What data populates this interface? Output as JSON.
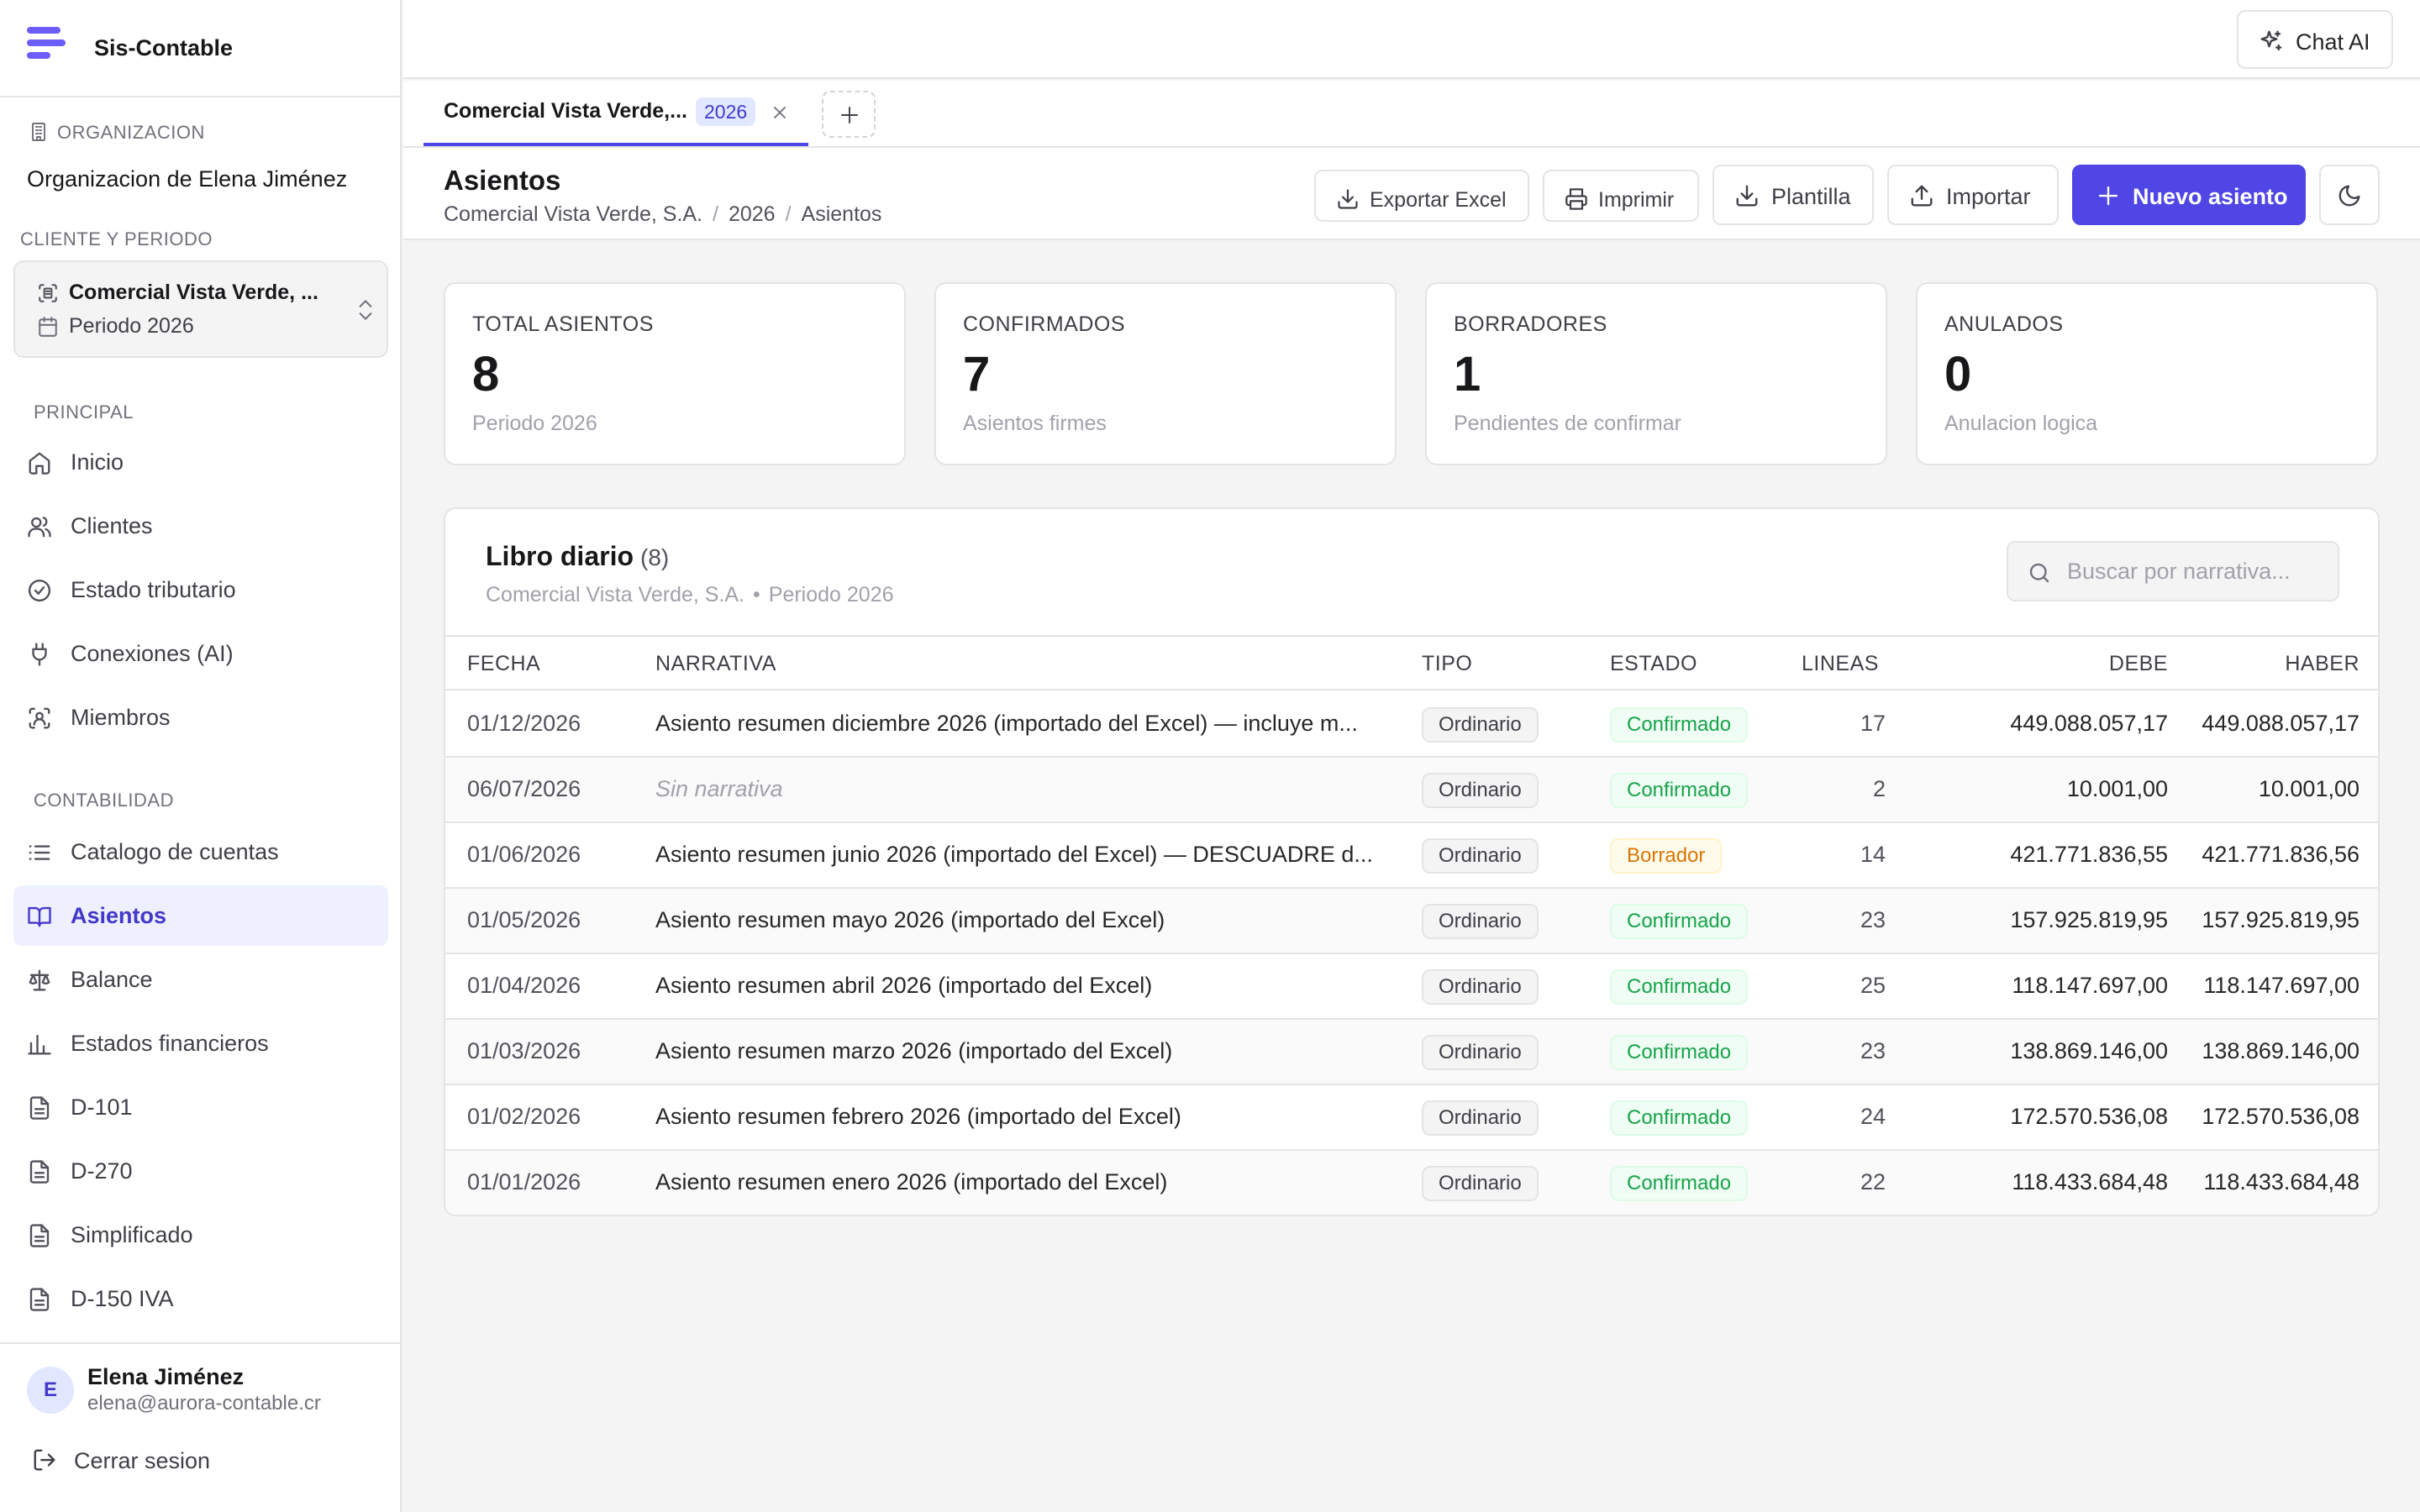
{
  "app": {
    "name": "Sis-Contable"
  },
  "sidebar": {
    "org_label": "ORGANIZACION",
    "org_name": "Organizacion de Elena Jiménez",
    "client_period_label": "CLIENTE Y PERIODO",
    "client_name": "Comercial Vista Verde, ...",
    "period": "Periodo 2026",
    "sections": [
      {
        "label": "PRINCIPAL",
        "items": [
          {
            "label": "Inicio",
            "icon": "home-icon"
          },
          {
            "label": "Clientes",
            "icon": "users-icon"
          },
          {
            "label": "Estado tributario",
            "icon": "badge-check-icon"
          },
          {
            "label": "Conexiones (AI)",
            "icon": "plug-icon"
          },
          {
            "label": "Miembros",
            "icon": "scan-user-icon"
          }
        ]
      },
      {
        "label": "CONTABILIDAD",
        "items": [
          {
            "label": "Catalogo de cuentas",
            "icon": "list-icon"
          },
          {
            "label": "Asientos",
            "icon": "book-icon",
            "active": true
          },
          {
            "label": "Balance",
            "icon": "scale-icon"
          },
          {
            "label": "Estados financieros",
            "icon": "bar-chart-icon"
          },
          {
            "label": "D-101",
            "icon": "file-icon"
          },
          {
            "label": "D-270",
            "icon": "file-icon"
          },
          {
            "label": "Simplificado",
            "icon": "file-icon"
          },
          {
            "label": "D-150 IVA",
            "icon": "file-icon"
          }
        ]
      }
    ],
    "user": {
      "initial": "E",
      "name": "Elena Jiménez",
      "email": "elena@aurora-contable.cr"
    },
    "logout_label": "Cerrar sesion"
  },
  "topbar": {
    "chat_label": "Chat AI"
  },
  "tabs": [
    {
      "label": "Comercial Vista Verde,...",
      "badge": "2026"
    }
  ],
  "page": {
    "title": "Asientos",
    "breadcrumbs": [
      "Comercial Vista Verde, S.A.",
      "2026",
      "Asientos"
    ],
    "actions": {
      "export_excel": "Exportar Excel",
      "print": "Imprimir",
      "template": "Plantilla",
      "import": "Importar",
      "new_entry": "Nuevo asiento"
    }
  },
  "stats": [
    {
      "label": "TOTAL ASIENTOS",
      "value": "8",
      "sub": "Periodo 2026"
    },
    {
      "label": "CONFIRMADOS",
      "value": "7",
      "sub": "Asientos firmes"
    },
    {
      "label": "BORRADORES",
      "value": "1",
      "sub": "Pendientes de confirmar"
    },
    {
      "label": "ANULADOS",
      "value": "0",
      "sub": "Anulacion logica"
    }
  ],
  "journal": {
    "title": "Libro diario",
    "count": "(8)",
    "subtitle_client": "Comercial Vista Verde, S.A.",
    "subtitle_sep": "•",
    "subtitle_period": "Periodo 2026",
    "search_placeholder": "Buscar por narrativa...",
    "columns": {
      "fecha": "FECHA",
      "narrativa": "NARRATIVA",
      "tipo": "TIPO",
      "estado": "ESTADO",
      "lineas": "LINEAS",
      "debe": "DEBE",
      "haber": "HABER"
    },
    "rows": [
      {
        "fecha": "01/12/2026",
        "narrativa": "Asiento resumen diciembre 2026 (importado del Excel) — incluye m...",
        "tipo": "Ordinario",
        "estado": "Confirmado",
        "status": "ok",
        "lineas": "17",
        "debe": "449.088.057,17",
        "haber": "449.088.057,17"
      },
      {
        "fecha": "06/07/2026",
        "narrativa": "Sin narrativa",
        "empty": true,
        "tipo": "Ordinario",
        "estado": "Confirmado",
        "status": "ok",
        "lineas": "2",
        "debe": "10.001,00",
        "haber": "10.001,00"
      },
      {
        "fecha": "01/06/2026",
        "narrativa": "Asiento resumen junio 2026 (importado del Excel) — DESCUADRE d...",
        "tipo": "Ordinario",
        "estado": "Borrador",
        "status": "draft",
        "lineas": "14",
        "debe": "421.771.836,55",
        "haber": "421.771.836,56"
      },
      {
        "fecha": "01/05/2026",
        "narrativa": "Asiento resumen mayo 2026 (importado del Excel)",
        "tipo": "Ordinario",
        "estado": "Confirmado",
        "status": "ok",
        "lineas": "23",
        "debe": "157.925.819,95",
        "haber": "157.925.819,95"
      },
      {
        "fecha": "01/04/2026",
        "narrativa": "Asiento resumen abril 2026 (importado del Excel)",
        "tipo": "Ordinario",
        "estado": "Confirmado",
        "status": "ok",
        "lineas": "25",
        "debe": "118.147.697,00",
        "haber": "118.147.697,00"
      },
      {
        "fecha": "01/03/2026",
        "narrativa": "Asiento resumen marzo 2026 (importado del Excel)",
        "tipo": "Ordinario",
        "estado": "Confirmado",
        "status": "ok",
        "lineas": "23",
        "debe": "138.869.146,00",
        "haber": "138.869.146,00"
      },
      {
        "fecha": "01/02/2026",
        "narrativa": "Asiento resumen febrero 2026 (importado del Excel)",
        "tipo": "Ordinario",
        "estado": "Confirmado",
        "status": "ok",
        "lineas": "24",
        "debe": "172.570.536,08",
        "haber": "172.570.536,08"
      },
      {
        "fecha": "01/01/2026",
        "narrativa": "Asiento resumen enero 2026 (importado del Excel)",
        "tipo": "Ordinario",
        "estado": "Confirmado",
        "status": "ok",
        "lineas": "22",
        "debe": "118.433.684,48",
        "haber": "118.433.684,48"
      }
    ]
  },
  "colors": {
    "accent": "#4f46e5",
    "accent_soft": "#eef0fd",
    "confirmed": "#16a34a",
    "draft": "#d97706",
    "border": "#e4e4e7"
  }
}
